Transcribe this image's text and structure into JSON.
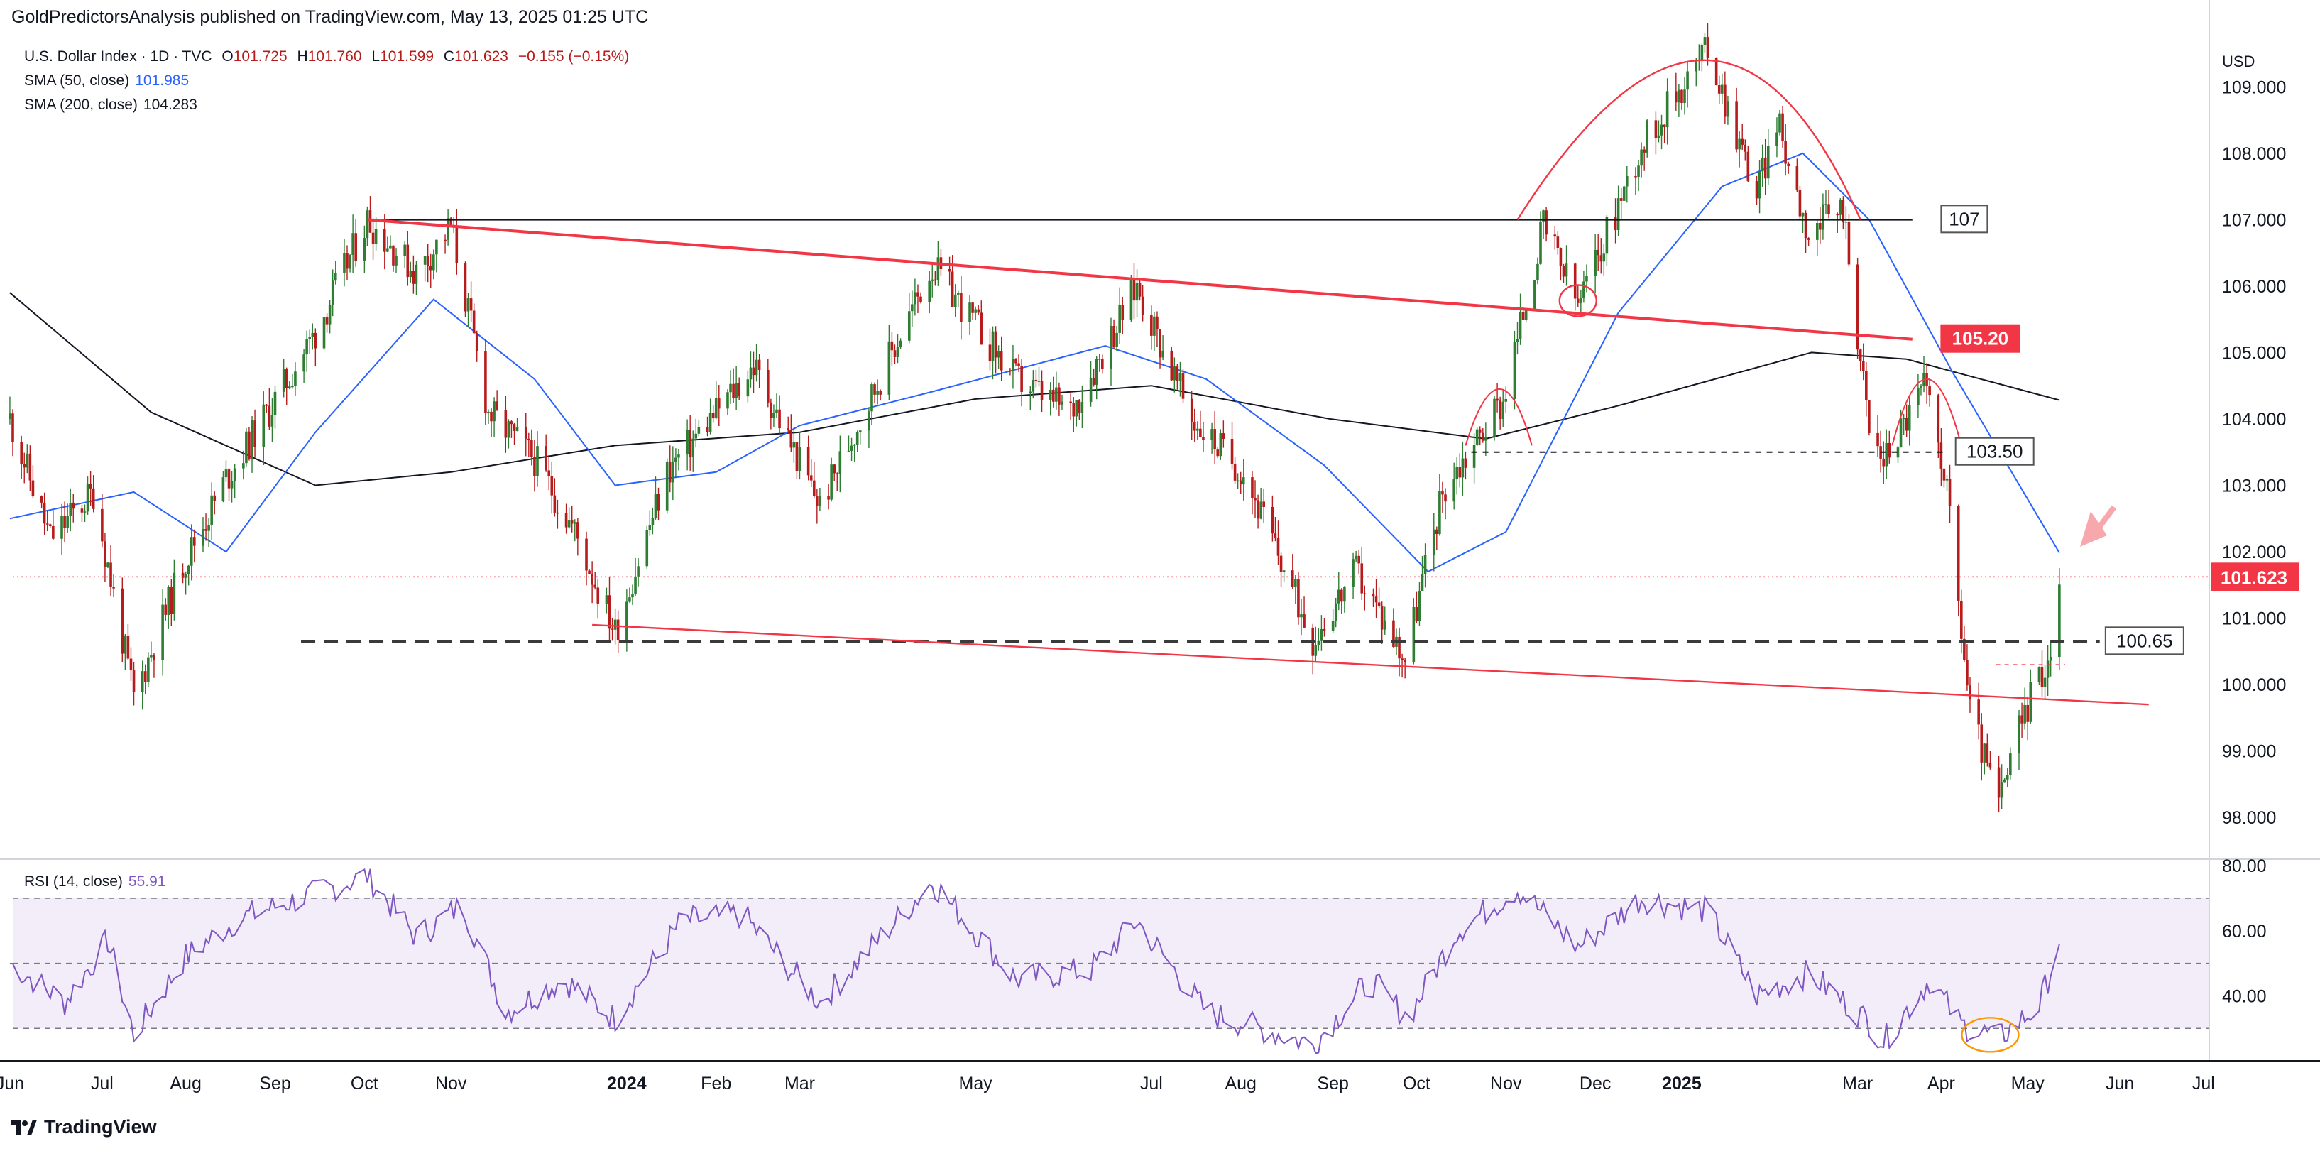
{
  "header": {
    "publisher": "GoldPredictorsAnalysis published on TradingView.com, May 13, 2025 01:25 UTC"
  },
  "legend": {
    "symbol": "U.S. Dollar Index · 1D · TVC",
    "open_label": "O",
    "open": "101.725",
    "high_label": "H",
    "high": "101.760",
    "low_label": "L",
    "low": "101.599",
    "close_label": "C",
    "close": "101.623",
    "change": "−0.155 (−0.15%)",
    "sma50_label": "SMA (50, close)",
    "sma50_value": "101.985",
    "sma200_label": "SMA (200, close)",
    "sma200_value": "104.283",
    "rsi_label": "RSI (14, close)",
    "rsi_value": "55.91"
  },
  "currency": "USD",
  "brand": "TradingView",
  "colors": {
    "up": "#2e7d32",
    "down": "#b71c1c",
    "sma50": "#2962ff",
    "sma200": "#131722",
    "rsi": "#7e57c2",
    "accent_red": "#f23645",
    "price_tag": "#f23645"
  },
  "chart_data": [
    {
      "type": "candlestick",
      "title": "U.S. Dollar Index · 1D · TVC",
      "x_labels": [
        "Jun",
        "Jul",
        "Aug",
        "Sep",
        "Oct",
        "Nov",
        "2024",
        "Feb",
        "Mar",
        "May",
        "Jul",
        "Aug",
        "Sep",
        "Oct",
        "Nov",
        "Dec",
        "2025",
        "Mar",
        "Apr",
        "May",
        "Jun",
        "Jul"
      ],
      "y_ticks": [
        "98.000",
        "99.000",
        "100.000",
        "101.000",
        "102.000",
        "103.000",
        "104.000",
        "105.000",
        "106.000",
        "107.000",
        "108.000",
        "109.000"
      ],
      "ylim": [
        97.5,
        110.2
      ],
      "last_price": "101.623",
      "price_path": [
        [
          "2023-06-01",
          104.0
        ],
        [
          "2023-06-15",
          102.2
        ],
        [
          "2023-06-30",
          102.9
        ],
        [
          "2023-07-14",
          99.8
        ],
        [
          "2023-07-31",
          101.8
        ],
        [
          "2023-08-15",
          103.1
        ],
        [
          "2023-08-31",
          104.2
        ],
        [
          "2023-09-15",
          105.3
        ],
        [
          "2023-10-03",
          107.0
        ],
        [
          "2023-10-20",
          106.2
        ],
        [
          "2023-11-01",
          106.9
        ],
        [
          "2023-11-14",
          104.1
        ],
        [
          "2023-11-30",
          103.4
        ],
        [
          "2023-12-14",
          102.3
        ],
        [
          "2023-12-28",
          100.8
        ],
        [
          "2024-01-15",
          103.2
        ],
        [
          "2024-02-14",
          104.8
        ],
        [
          "2024-03-08",
          102.7
        ],
        [
          "2024-04-16",
          106.3
        ],
        [
          "2024-05-15",
          104.6
        ],
        [
          "2024-06-03",
          104.1
        ],
        [
          "2024-06-26",
          106.0
        ],
        [
          "2024-07-15",
          104.0
        ],
        [
          "2024-08-02",
          103.2
        ],
        [
          "2024-08-26",
          100.7
        ],
        [
          "2024-09-10",
          101.7
        ],
        [
          "2024-09-27",
          100.4
        ],
        [
          "2024-10-10",
          102.9
        ],
        [
          "2024-10-31",
          104.3
        ],
        [
          "2024-11-14",
          106.9
        ],
        [
          "2024-11-26",
          105.7
        ],
        [
          "2024-12-18",
          108.1
        ],
        [
          "2025-01-10",
          109.6
        ],
        [
          "2025-01-27",
          107.4
        ],
        [
          "2025-02-03",
          108.5
        ],
        [
          "2025-02-14",
          106.8
        ],
        [
          "2025-02-26",
          107.2
        ],
        [
          "2025-03-07",
          103.8
        ],
        [
          "2025-03-12",
          103.4
        ],
        [
          "2025-03-26",
          104.5
        ],
        [
          "2025-04-02",
          103.3
        ],
        [
          "2025-04-11",
          99.6
        ],
        [
          "2025-04-21",
          98.2
        ],
        [
          "2025-04-30",
          99.6
        ],
        [
          "2025-05-09",
          100.5
        ],
        [
          "2025-05-12",
          101.6
        ]
      ],
      "sma50": [
        [
          "2023-06-01",
          102.5
        ],
        [
          "2023-07-14",
          102.9
        ],
        [
          "2023-08-15",
          102.0
        ],
        [
          "2023-09-15",
          103.8
        ],
        [
          "2023-10-26",
          105.8
        ],
        [
          "2023-11-30",
          104.6
        ],
        [
          "2023-12-28",
          103.0
        ],
        [
          "2024-02-01",
          103.2
        ],
        [
          "2024-03-01",
          103.9
        ],
        [
          "2024-04-15",
          104.4
        ],
        [
          "2024-06-15",
          105.1
        ],
        [
          "2024-07-20",
          104.6
        ],
        [
          "2024-08-30",
          103.3
        ],
        [
          "2024-10-05",
          101.7
        ],
        [
          "2024-11-01",
          102.3
        ],
        [
          "2024-12-10",
          105.6
        ],
        [
          "2025-01-15",
          107.5
        ],
        [
          "2025-02-12",
          108.0
        ],
        [
          "2025-03-07",
          107.0
        ],
        [
          "2025-04-05",
          104.7
        ],
        [
          "2025-05-12",
          101.985
        ]
      ],
      "sma200": [
        [
          "2023-06-01",
          105.9
        ],
        [
          "2023-07-20",
          104.1
        ],
        [
          "2023-09-15",
          103.0
        ],
        [
          "2023-11-01",
          103.2
        ],
        [
          "2023-12-28",
          103.6
        ],
        [
          "2024-03-01",
          103.8
        ],
        [
          "2024-05-01",
          104.3
        ],
        [
          "2024-07-01",
          104.5
        ],
        [
          "2024-09-01",
          104.0
        ],
        [
          "2024-10-25",
          103.7
        ],
        [
          "2024-12-10",
          104.2
        ],
        [
          "2025-02-15",
          105.0
        ],
        [
          "2025-03-20",
          104.9
        ],
        [
          "2025-05-12",
          104.283
        ]
      ],
      "levels": [
        {
          "label": "107",
          "value": 107.0
        },
        {
          "label": "105.20",
          "value": 105.2
        },
        {
          "label": "103.50",
          "value": 103.5
        },
        {
          "label": "100.65",
          "value": 100.65
        }
      ]
    },
    {
      "type": "line",
      "title": "RSI (14, close)",
      "y_ticks": [
        "40.00",
        "60.00",
        "80.00"
      ],
      "ylim": [
        20,
        82
      ],
      "bands": [
        30,
        50,
        70
      ],
      "last_value": "55.91",
      "values": [
        [
          "2023-06-01",
          50
        ],
        [
          "2023-06-20",
          38
        ],
        [
          "2023-07-05",
          57
        ],
        [
          "2023-07-14",
          28
        ],
        [
          "2023-08-01",
          52
        ],
        [
          "2023-08-20",
          64
        ],
        [
          "2023-09-10",
          70
        ],
        [
          "2023-10-03",
          77
        ],
        [
          "2023-10-20",
          58
        ],
        [
          "2023-11-05",
          68
        ],
        [
          "2023-11-20",
          35
        ],
        [
          "2023-12-10",
          45
        ],
        [
          "2023-12-28",
          33
        ],
        [
          "2024-01-20",
          63
        ],
        [
          "2024-02-10",
          65
        ],
        [
          "2024-03-08",
          38
        ],
        [
          "2024-04-16",
          75
        ],
        [
          "2024-05-15",
          45
        ],
        [
          "2024-06-10",
          48
        ],
        [
          "2024-06-26",
          63
        ],
        [
          "2024-07-20",
          35
        ],
        [
          "2024-08-26",
          25
        ],
        [
          "2024-09-15",
          45
        ],
        [
          "2024-09-28",
          33
        ],
        [
          "2024-10-15",
          60
        ],
        [
          "2024-11-05",
          73
        ],
        [
          "2024-11-26",
          55
        ],
        [
          "2024-12-18",
          70
        ],
        [
          "2025-01-10",
          66
        ],
        [
          "2025-01-27",
          40
        ],
        [
          "2025-02-14",
          47
        ],
        [
          "2025-03-07",
          32
        ],
        [
          "2025-03-12",
          26
        ],
        [
          "2025-03-28",
          45
        ],
        [
          "2025-04-08",
          31
        ],
        [
          "2025-04-21",
          27
        ],
        [
          "2025-05-05",
          37
        ],
        [
          "2025-05-12",
          55.91
        ]
      ]
    }
  ]
}
